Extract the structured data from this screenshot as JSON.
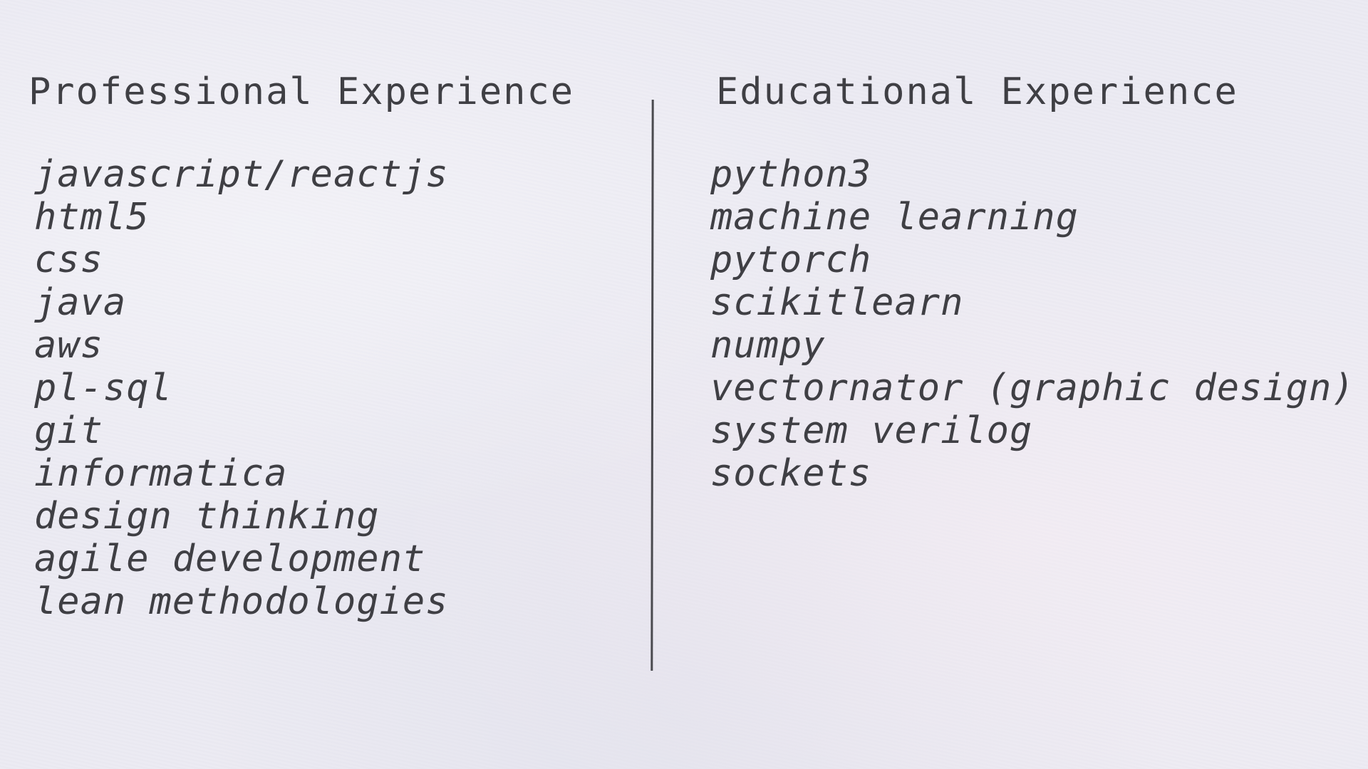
{
  "professional": {
    "heading": "Professional Experience",
    "items": [
      "javascript/reactjs",
      "html5",
      "css",
      "java",
      "aws",
      "pl-sql",
      "git",
      "informatica",
      "design thinking",
      "agile development",
      "lean methodologies"
    ]
  },
  "educational": {
    "heading": "Educational Experience",
    "items": [
      "python3",
      "machine learning",
      "pytorch",
      "scikitlearn",
      "numpy",
      "vectornator (graphic design)",
      "system verilog",
      "sockets"
    ]
  }
}
